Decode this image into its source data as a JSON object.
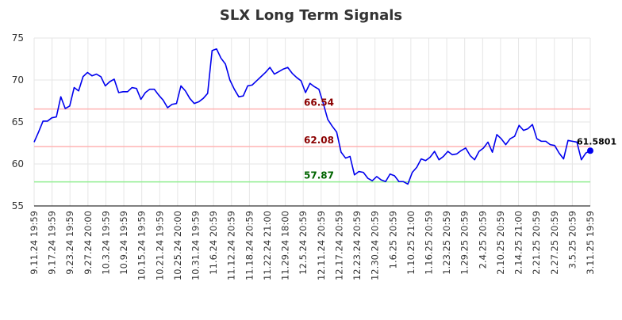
{
  "chart_data": {
    "type": "line",
    "title": "SLX Long Term Signals",
    "xlabel": "",
    "ylabel": "",
    "ylim": [
      55,
      75
    ],
    "yticks": [
      55,
      60,
      65,
      70,
      75
    ],
    "grid": true,
    "x_tick_labels": [
      "9.11.24 19:59",
      "9.17.24 19:59",
      "9.23.24 19:59",
      "9.27.24 20:00",
      "10.3.24 19:59",
      "10.9.24 19:59",
      "10.15.24 19:59",
      "10.21.24 19:59",
      "10.25.24 20:00",
      "10.31.24 19:59",
      "11.6.24 20:59",
      "11.12.24 20:59",
      "11.18.24 20:59",
      "11.22.24 21:00",
      "11.29.24 18:00",
      "12.5.24 20:59",
      "12.11.24 20:59",
      "12.17.24 20:59",
      "12.23.24 20:59",
      "12.30.24 20:59",
      "1.6.25 20:59",
      "1.10.25 21:00",
      "1.16.25 20:59",
      "1.23.25 20:59",
      "1.29.25 20:59",
      "2.4.25 20:59",
      "2.10.25 20:59",
      "2.14.25 21:00",
      "2.21.25 20:59",
      "2.27.25 20:59",
      "3.5.25 20:59",
      "3.11.25 19:59"
    ],
    "levels": [
      {
        "value": 66.54,
        "label": "66.54",
        "line_color": "#ffb3b3",
        "text_color": "#8b0000"
      },
      {
        "value": 62.08,
        "label": "62.08",
        "line_color": "#ffb3b3",
        "text_color": "#8b0000"
      },
      {
        "value": 57.87,
        "label": "57.87",
        "line_color": "#90ee90",
        "text_color": "#006400"
      }
    ],
    "series": [
      {
        "color": "#0000ee",
        "values": [
          62.6,
          63.8,
          65.1,
          65.1,
          65.5,
          65.6,
          68.0,
          66.6,
          66.9,
          69.1,
          68.7,
          70.4,
          70.9,
          70.5,
          70.7,
          70.4,
          69.3,
          69.8,
          70.1,
          68.5,
          68.6,
          68.6,
          69.1,
          69.0,
          67.7,
          68.5,
          68.9,
          68.9,
          68.2,
          67.6,
          66.7,
          67.1,
          67.2,
          69.3,
          68.7,
          67.8,
          67.2,
          67.4,
          67.8,
          68.4,
          73.5,
          73.7,
          72.6,
          71.9,
          70.0,
          68.9,
          68.0,
          68.1,
          69.3,
          69.4,
          69.9,
          70.4,
          70.9,
          71.5,
          70.7,
          71.0,
          71.3,
          71.5,
          70.8,
          70.3,
          69.9,
          68.5,
          69.6,
          69.2,
          68.9,
          67.2,
          65.3,
          64.5,
          63.8,
          61.4,
          60.7,
          60.9,
          58.7,
          59.1,
          59.0,
          58.3,
          58.0,
          58.5,
          58.1,
          57.9,
          58.8,
          58.6,
          57.9,
          57.9,
          57.6,
          59.0,
          59.6,
          60.6,
          60.4,
          60.8,
          61.5,
          60.5,
          60.9,
          61.5,
          61.1,
          61.2,
          61.6,
          61.9,
          61.0,
          60.5,
          61.5,
          61.9,
          62.6,
          61.4,
          63.5,
          63.0,
          62.3,
          63.0,
          63.3,
          64.6,
          64.0,
          64.2,
          64.7,
          63.0,
          62.7,
          62.7,
          62.3,
          62.2,
          61.3,
          60.6,
          62.8,
          62.7,
          62.6,
          60.5,
          61.3,
          61.58
        ]
      }
    ],
    "last_value_label": "61.5801"
  }
}
